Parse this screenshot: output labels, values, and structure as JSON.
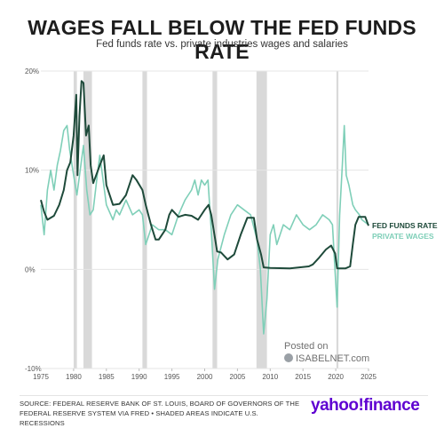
{
  "title": "WAGES FALL BELOW THE FED FUNDS RATE",
  "subtitle": "Fed funds rate vs. private industries wages and salaries",
  "watermark": {
    "line1": "Posted on",
    "line2": "ISABELNET.com"
  },
  "source": "SOURCE: FEDERAL RESERVE BANK OF ST. LOUIS, BOARD OF GOVERNORS OF THE FEDERAL RESERVE SYSTEM VIA FRED • SHADED AREAS INDICATE U.S. RECESSIONS",
  "brand": "yahoo!finance",
  "chart_data": {
    "type": "line",
    "xlim": [
      1975,
      2025
    ],
    "ylim": [
      -10,
      20
    ],
    "x_ticks": [
      "1975",
      "1980",
      "1985",
      "1990",
      "1995",
      "2000",
      "2005",
      "2010",
      "2015",
      "2020",
      "2025"
    ],
    "y_ticks": [
      {
        "value": 20,
        "label": "20%"
      },
      {
        "value": 10,
        "label": "10%"
      },
      {
        "value": 0,
        "label": "0%"
      },
      {
        "value": -10,
        "label": "-10%"
      }
    ],
    "grid": "horizontal",
    "legend": "right",
    "recessions": [
      [
        1980.0,
        1980.5
      ],
      [
        1981.5,
        1982.8
      ],
      [
        1990.5,
        1991.2
      ],
      [
        2001.2,
        2001.9
      ],
      [
        2007.9,
        2009.5
      ],
      [
        2020.1,
        2020.4
      ]
    ],
    "series": [
      {
        "name": "FED FUNDS RATE",
        "color": "#1e4a3a",
        "points": [
          [
            1975,
            7.0
          ],
          [
            1975.5,
            5.8
          ],
          [
            1976,
            5.0
          ],
          [
            1977,
            5.4
          ],
          [
            1977.8,
            6.5
          ],
          [
            1978.5,
            8.0
          ],
          [
            1979,
            10.0
          ],
          [
            1979.5,
            10.8
          ],
          [
            1980,
            13.5
          ],
          [
            1980.4,
            17.6
          ],
          [
            1980.6,
            9.5
          ],
          [
            1980.9,
            15.5
          ],
          [
            1981.2,
            19.0
          ],
          [
            1981.5,
            18.8
          ],
          [
            1981.9,
            13.5
          ],
          [
            1982.3,
            14.5
          ],
          [
            1982.6,
            10.5
          ],
          [
            1983,
            8.7
          ],
          [
            1984,
            10.5
          ],
          [
            1984.6,
            11.5
          ],
          [
            1985,
            8.5
          ],
          [
            1986,
            6.5
          ],
          [
            1987,
            6.6
          ],
          [
            1988,
            7.5
          ],
          [
            1989,
            9.5
          ],
          [
            1989.6,
            9.0
          ],
          [
            1990.5,
            8.0
          ],
          [
            1991,
            6.5
          ],
          [
            1991.8,
            4.5
          ],
          [
            1992.5,
            3.0
          ],
          [
            1993,
            3.0
          ],
          [
            1994,
            4.0
          ],
          [
            1994.6,
            5.5
          ],
          [
            1995,
            6.0
          ],
          [
            1996,
            5.3
          ],
          [
            1997,
            5.5
          ],
          [
            1998,
            5.4
          ],
          [
            1999,
            5.0
          ],
          [
            2000,
            6.0
          ],
          [
            2000.6,
            6.5
          ],
          [
            2001,
            5.5
          ],
          [
            2001.9,
            1.8
          ],
          [
            2002.5,
            1.7
          ],
          [
            2003.5,
            1.0
          ],
          [
            2004.5,
            1.5
          ],
          [
            2005.5,
            3.5
          ],
          [
            2006.5,
            5.2
          ],
          [
            2007.5,
            5.2
          ],
          [
            2008,
            3.0
          ],
          [
            2008.6,
            1.5
          ],
          [
            2009,
            0.2
          ],
          [
            2010,
            0.15
          ],
          [
            2013,
            0.1
          ],
          [
            2015.9,
            0.3
          ],
          [
            2016.5,
            0.5
          ],
          [
            2017.5,
            1.2
          ],
          [
            2018.5,
            2.0
          ],
          [
            2019.3,
            2.4
          ],
          [
            2019.9,
            1.6
          ],
          [
            2020.2,
            0.1
          ],
          [
            2021.5,
            0.1
          ],
          [
            2022.2,
            0.3
          ],
          [
            2022.6,
            2.5
          ],
          [
            2023,
            4.5
          ],
          [
            2023.5,
            5.3
          ],
          [
            2024.5,
            5.3
          ],
          [
            2025,
            4.4
          ]
        ]
      },
      {
        "name": "PRIVATE WAGES",
        "color": "#7fcfb8",
        "points": [
          [
            1975,
            6.5
          ],
          [
            1975.5,
            3.5
          ],
          [
            1976,
            8.0
          ],
          [
            1976.5,
            10.0
          ],
          [
            1977,
            8.0
          ],
          [
            1977.5,
            10.5
          ],
          [
            1978,
            12.0
          ],
          [
            1978.5,
            14.0
          ],
          [
            1979,
            14.5
          ],
          [
            1979.4,
            12.0
          ],
          [
            1980,
            9.5
          ],
          [
            1980.5,
            7.5
          ],
          [
            1981,
            10.0
          ],
          [
            1981.5,
            12.5
          ],
          [
            1982,
            8.0
          ],
          [
            1982.5,
            5.5
          ],
          [
            1983,
            6.0
          ],
          [
            1983.7,
            10.0
          ],
          [
            1984,
            11.5
          ],
          [
            1984.5,
            9.0
          ],
          [
            1985,
            6.5
          ],
          [
            1986,
            5.0
          ],
          [
            1986.5,
            6.0
          ],
          [
            1987,
            5.5
          ],
          [
            1988,
            7.0
          ],
          [
            1989,
            5.5
          ],
          [
            1990,
            6.0
          ],
          [
            1990.5,
            5.5
          ],
          [
            1991,
            2.5
          ],
          [
            1992,
            4.5
          ],
          [
            1993,
            4.0
          ],
          [
            1994,
            4.0
          ],
          [
            1995,
            3.5
          ],
          [
            1996,
            5.5
          ],
          [
            1997,
            7.0
          ],
          [
            1998,
            8.0
          ],
          [
            1998.5,
            9.0
          ],
          [
            1999,
            7.5
          ],
          [
            1999.5,
            9.0
          ],
          [
            2000,
            8.5
          ],
          [
            2000.5,
            9.0
          ],
          [
            2001,
            4.0
          ],
          [
            2001.5,
            -2.0
          ],
          [
            2002,
            1.0
          ],
          [
            2003,
            3.5
          ],
          [
            2004,
            5.5
          ],
          [
            2005,
            6.5
          ],
          [
            2006,
            6.0
          ],
          [
            2007,
            5.5
          ],
          [
            2008,
            3.0
          ],
          [
            2008.5,
            0.0
          ],
          [
            2009,
            -6.5
          ],
          [
            2009.5,
            -3.0
          ],
          [
            2010,
            3.5
          ],
          [
            2010.5,
            4.5
          ],
          [
            2011,
            2.5
          ],
          [
            2012,
            4.5
          ],
          [
            2013,
            4.0
          ],
          [
            2014,
            5.5
          ],
          [
            2015,
            4.5
          ],
          [
            2016,
            4.0
          ],
          [
            2017,
            4.5
          ],
          [
            2018,
            5.5
          ],
          [
            2019,
            5.0
          ],
          [
            2019.5,
            4.5
          ],
          [
            2020.2,
            -3.8
          ],
          [
            2020.6,
            5.5
          ],
          [
            2021,
            10.5
          ],
          [
            2021.3,
            14.5
          ],
          [
            2021.6,
            9.5
          ],
          [
            2022,
            8.5
          ],
          [
            2022.6,
            6.5
          ],
          [
            2023,
            6.0
          ],
          [
            2023.6,
            5.5
          ],
          [
            2024,
            5.0
          ],
          [
            2025,
            4.5
          ]
        ]
      }
    ]
  }
}
